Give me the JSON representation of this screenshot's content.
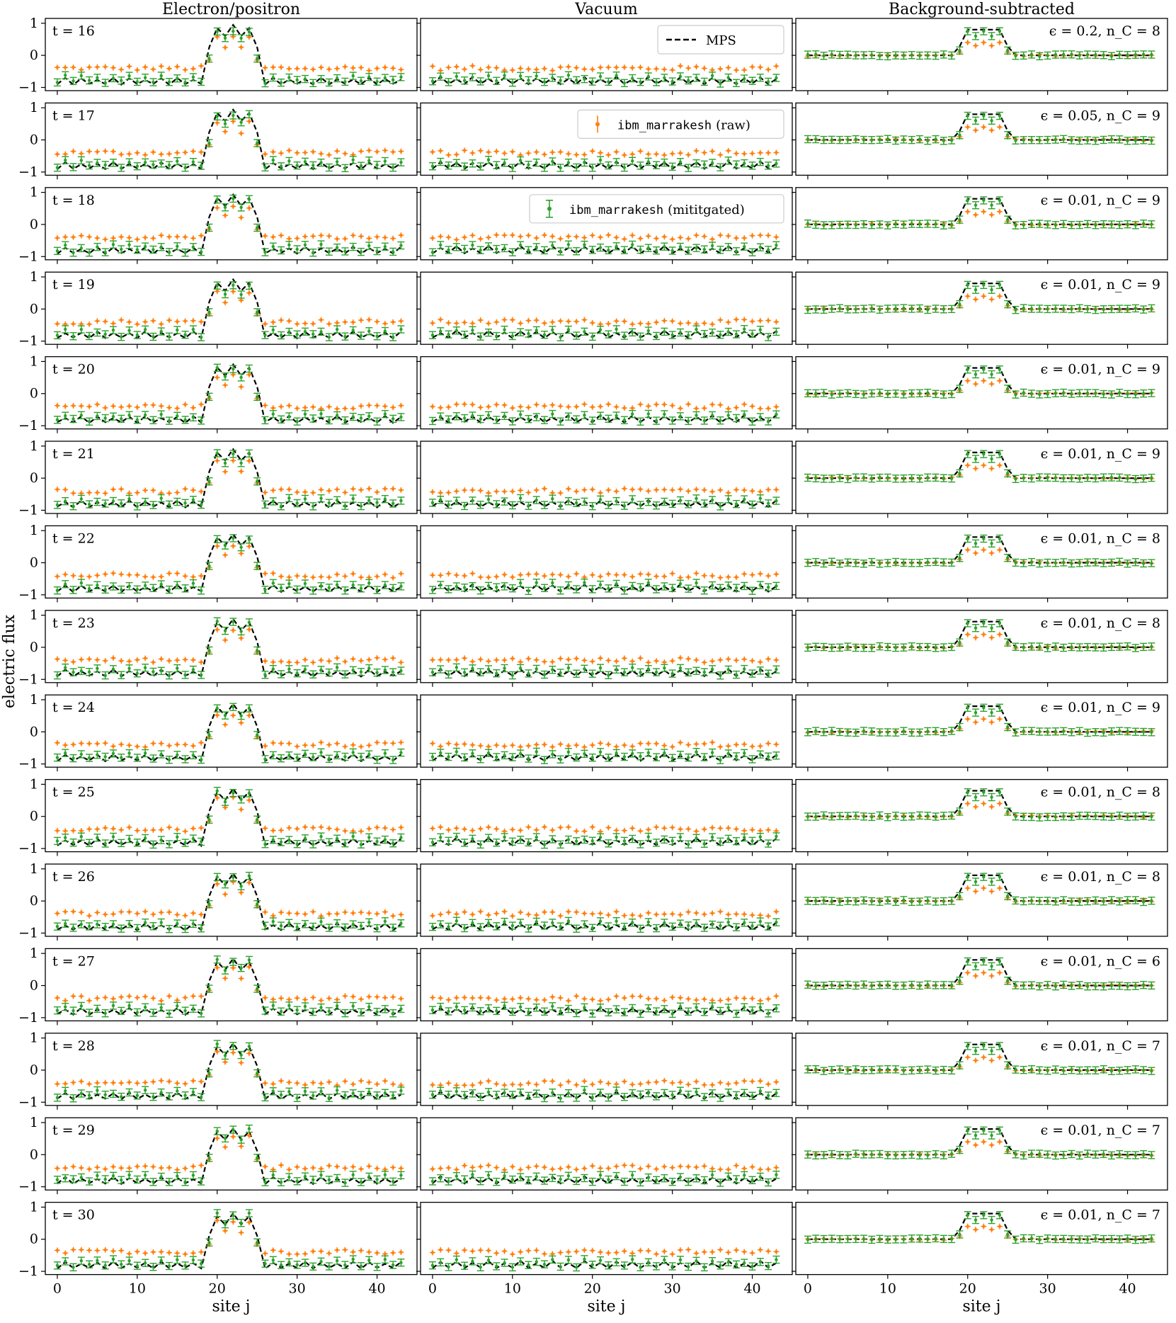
{
  "chart_data": {
    "type": "line",
    "columns": [
      {
        "title": "Electron/positron"
      },
      {
        "title": "Vacuum"
      },
      {
        "title": "Background-subtracted"
      }
    ],
    "ylabel": "electric flux",
    "xlabel": "site j",
    "xlim": [
      -1.5,
      45
    ],
    "ylim": [
      -1.1,
      1.15
    ],
    "x_ticks": [
      0,
      10,
      20,
      30,
      40
    ],
    "y_ticks": [
      -1,
      0,
      1
    ],
    "n_sites": 44,
    "rows": [
      {
        "t_label": "t = 16",
        "annotation": "ϵ = 0.2, n_C = 8"
      },
      {
        "t_label": "t = 17",
        "annotation": "ϵ = 0.05, n_C = 9"
      },
      {
        "t_label": "t = 18",
        "annotation": "ϵ = 0.01, n_C = 9"
      },
      {
        "t_label": "t = 19",
        "annotation": "ϵ = 0.01, n_C = 9"
      },
      {
        "t_label": "t = 20",
        "annotation": "ϵ = 0.01, n_C = 9"
      },
      {
        "t_label": "t = 21",
        "annotation": "ϵ = 0.01, n_C = 9"
      },
      {
        "t_label": "t = 22",
        "annotation": "ϵ = 0.01, n_C = 8"
      },
      {
        "t_label": "t = 23",
        "annotation": "ϵ = 0.01, n_C = 8"
      },
      {
        "t_label": "t = 24",
        "annotation": "ϵ = 0.01, n_C = 9"
      },
      {
        "t_label": "t = 25",
        "annotation": "ϵ = 0.01, n_C = 8"
      },
      {
        "t_label": "t = 26",
        "annotation": "ϵ = 0.01, n_C = 8"
      },
      {
        "t_label": "t = 27",
        "annotation": "ϵ = 0.01, n_C = 6"
      },
      {
        "t_label": "t = 28",
        "annotation": "ϵ = 0.01, n_C = 7"
      },
      {
        "t_label": "t = 29",
        "annotation": "ϵ = 0.01, n_C = 7"
      },
      {
        "t_label": "t = 30",
        "annotation": "ϵ = 0.01, n_C = 7"
      }
    ],
    "profiles": {
      "mps_electron_peak_sites": [
        19,
        20,
        21,
        22,
        23,
        24,
        25
      ],
      "mps_electron_peak_values": [
        0.25,
        0.85,
        0.6,
        0.95,
        0.6,
        0.85,
        0.25
      ],
      "mps_background_level": -0.85,
      "raw_background_level": -0.4,
      "raw_peak_level": 0.45,
      "mitigated_background_level": -0.78,
      "mitigated_peak_level": 0.65,
      "subtracted_mps_peak": 0.8,
      "subtracted_raw_peak": 0.35,
      "subtracted_mitigated_peak": 0.7
    },
    "series": [
      {
        "name": "MPS",
        "color": "#000000",
        "style": "dashed"
      },
      {
        "name": "ibm_marrakesh",
        "suffix": "(raw)",
        "color": "#ff7f0e",
        "style": "errorbar"
      },
      {
        "name": "ibm_marrakesh",
        "suffix": "(mititgated)",
        "color": "#2ca02c",
        "style": "errorbar"
      }
    ]
  }
}
